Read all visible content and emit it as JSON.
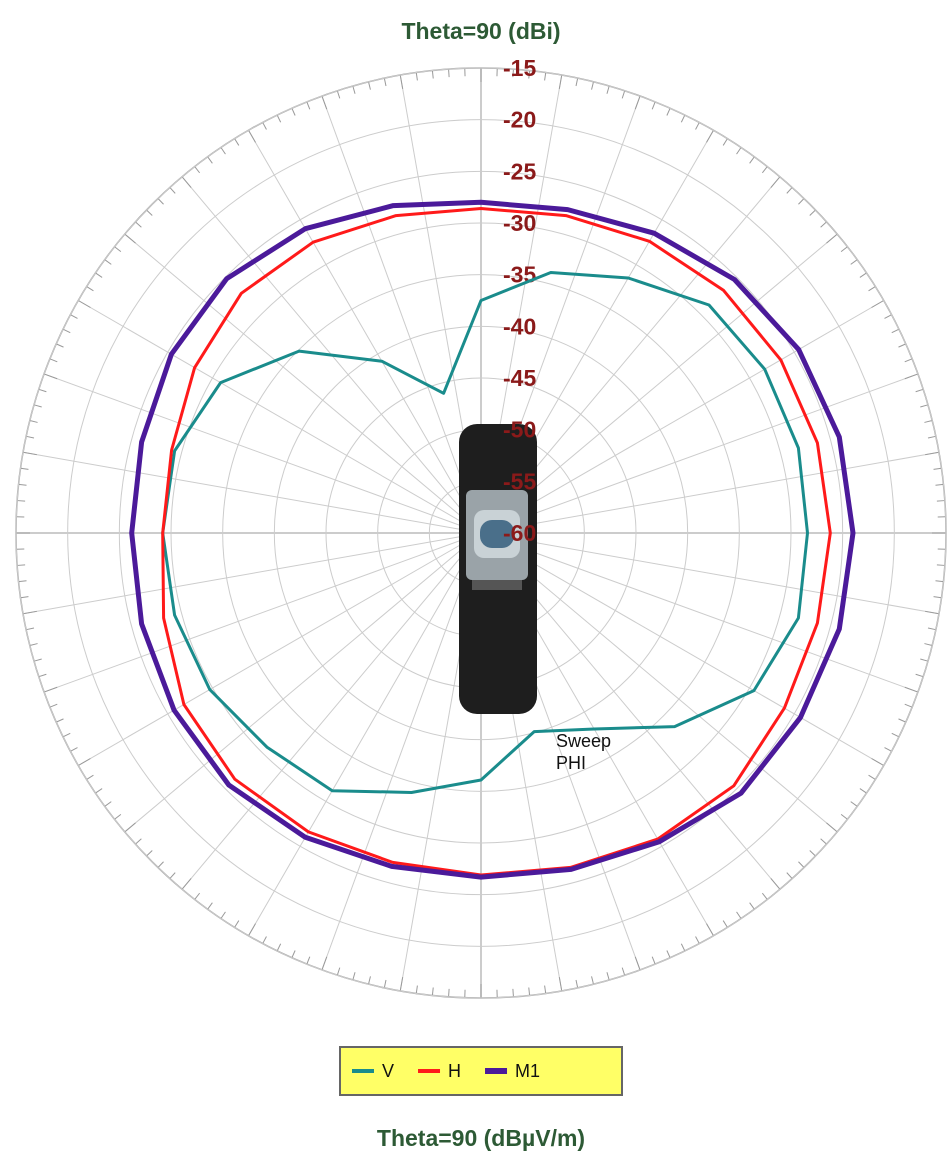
{
  "chart_data": {
    "type": "polar",
    "title": "Theta=90 (dBi)",
    "subtitle": "Theta=90 (dBµV/m)",
    "annotation": "Sweep PHI",
    "x": [
      0,
      15,
      30,
      45,
      60,
      75,
      90,
      105,
      120,
      135,
      150,
      165,
      180,
      195,
      210,
      225,
      240,
      255,
      270,
      285,
      300,
      315,
      330,
      345
    ],
    "series": [
      {
        "name": "V",
        "color": "#1a8c8c",
        "values": [
          -37.5,
          -33.9,
          -31.5,
          -28.8,
          -28.3,
          -28.2,
          -28.4,
          -28.2,
          -29.5,
          -33.5,
          -38.1,
          -40.1,
          -36.1,
          -34.0,
          -31.2,
          -30.7,
          -29.7,
          -29.3,
          -29.2,
          -29.3,
          -30.9,
          -35.1,
          -40.8,
          -46.0
        ]
      },
      {
        "name": "H",
        "color": "#ff1a1a",
        "values": [
          -28.6,
          -28.2,
          -27.4,
          -26.8,
          -26.5,
          -26.3,
          -26.2,
          -26.3,
          -26.1,
          -25.4,
          -25.8,
          -26.5,
          -26.9,
          -27.0,
          -26.6,
          -26.3,
          -26.8,
          -28.2,
          -29.2,
          -29.0,
          -28.0,
          -27.2,
          -27.5,
          -28.2
        ]
      },
      {
        "name": "M1",
        "color": "#4b1a9a",
        "values": [
          -28.0,
          -27.6,
          -26.5,
          -25.3,
          -24.5,
          -24.1,
          -24.0,
          -24.1,
          -24.3,
          -24.4,
          -25.5,
          -26.3,
          -26.7,
          -26.6,
          -26.0,
          -25.5,
          -25.7,
          -26.0,
          -26.2,
          -26.0,
          -25.4,
          -25.2,
          -26.0,
          -27.2
        ]
      }
    ],
    "ylim": [
      -60,
      -15
    ],
    "yticks": [
      -15,
      -20,
      -25,
      -30,
      -35,
      -40,
      -45,
      -50,
      -55,
      -60
    ],
    "grid": true
  }
}
